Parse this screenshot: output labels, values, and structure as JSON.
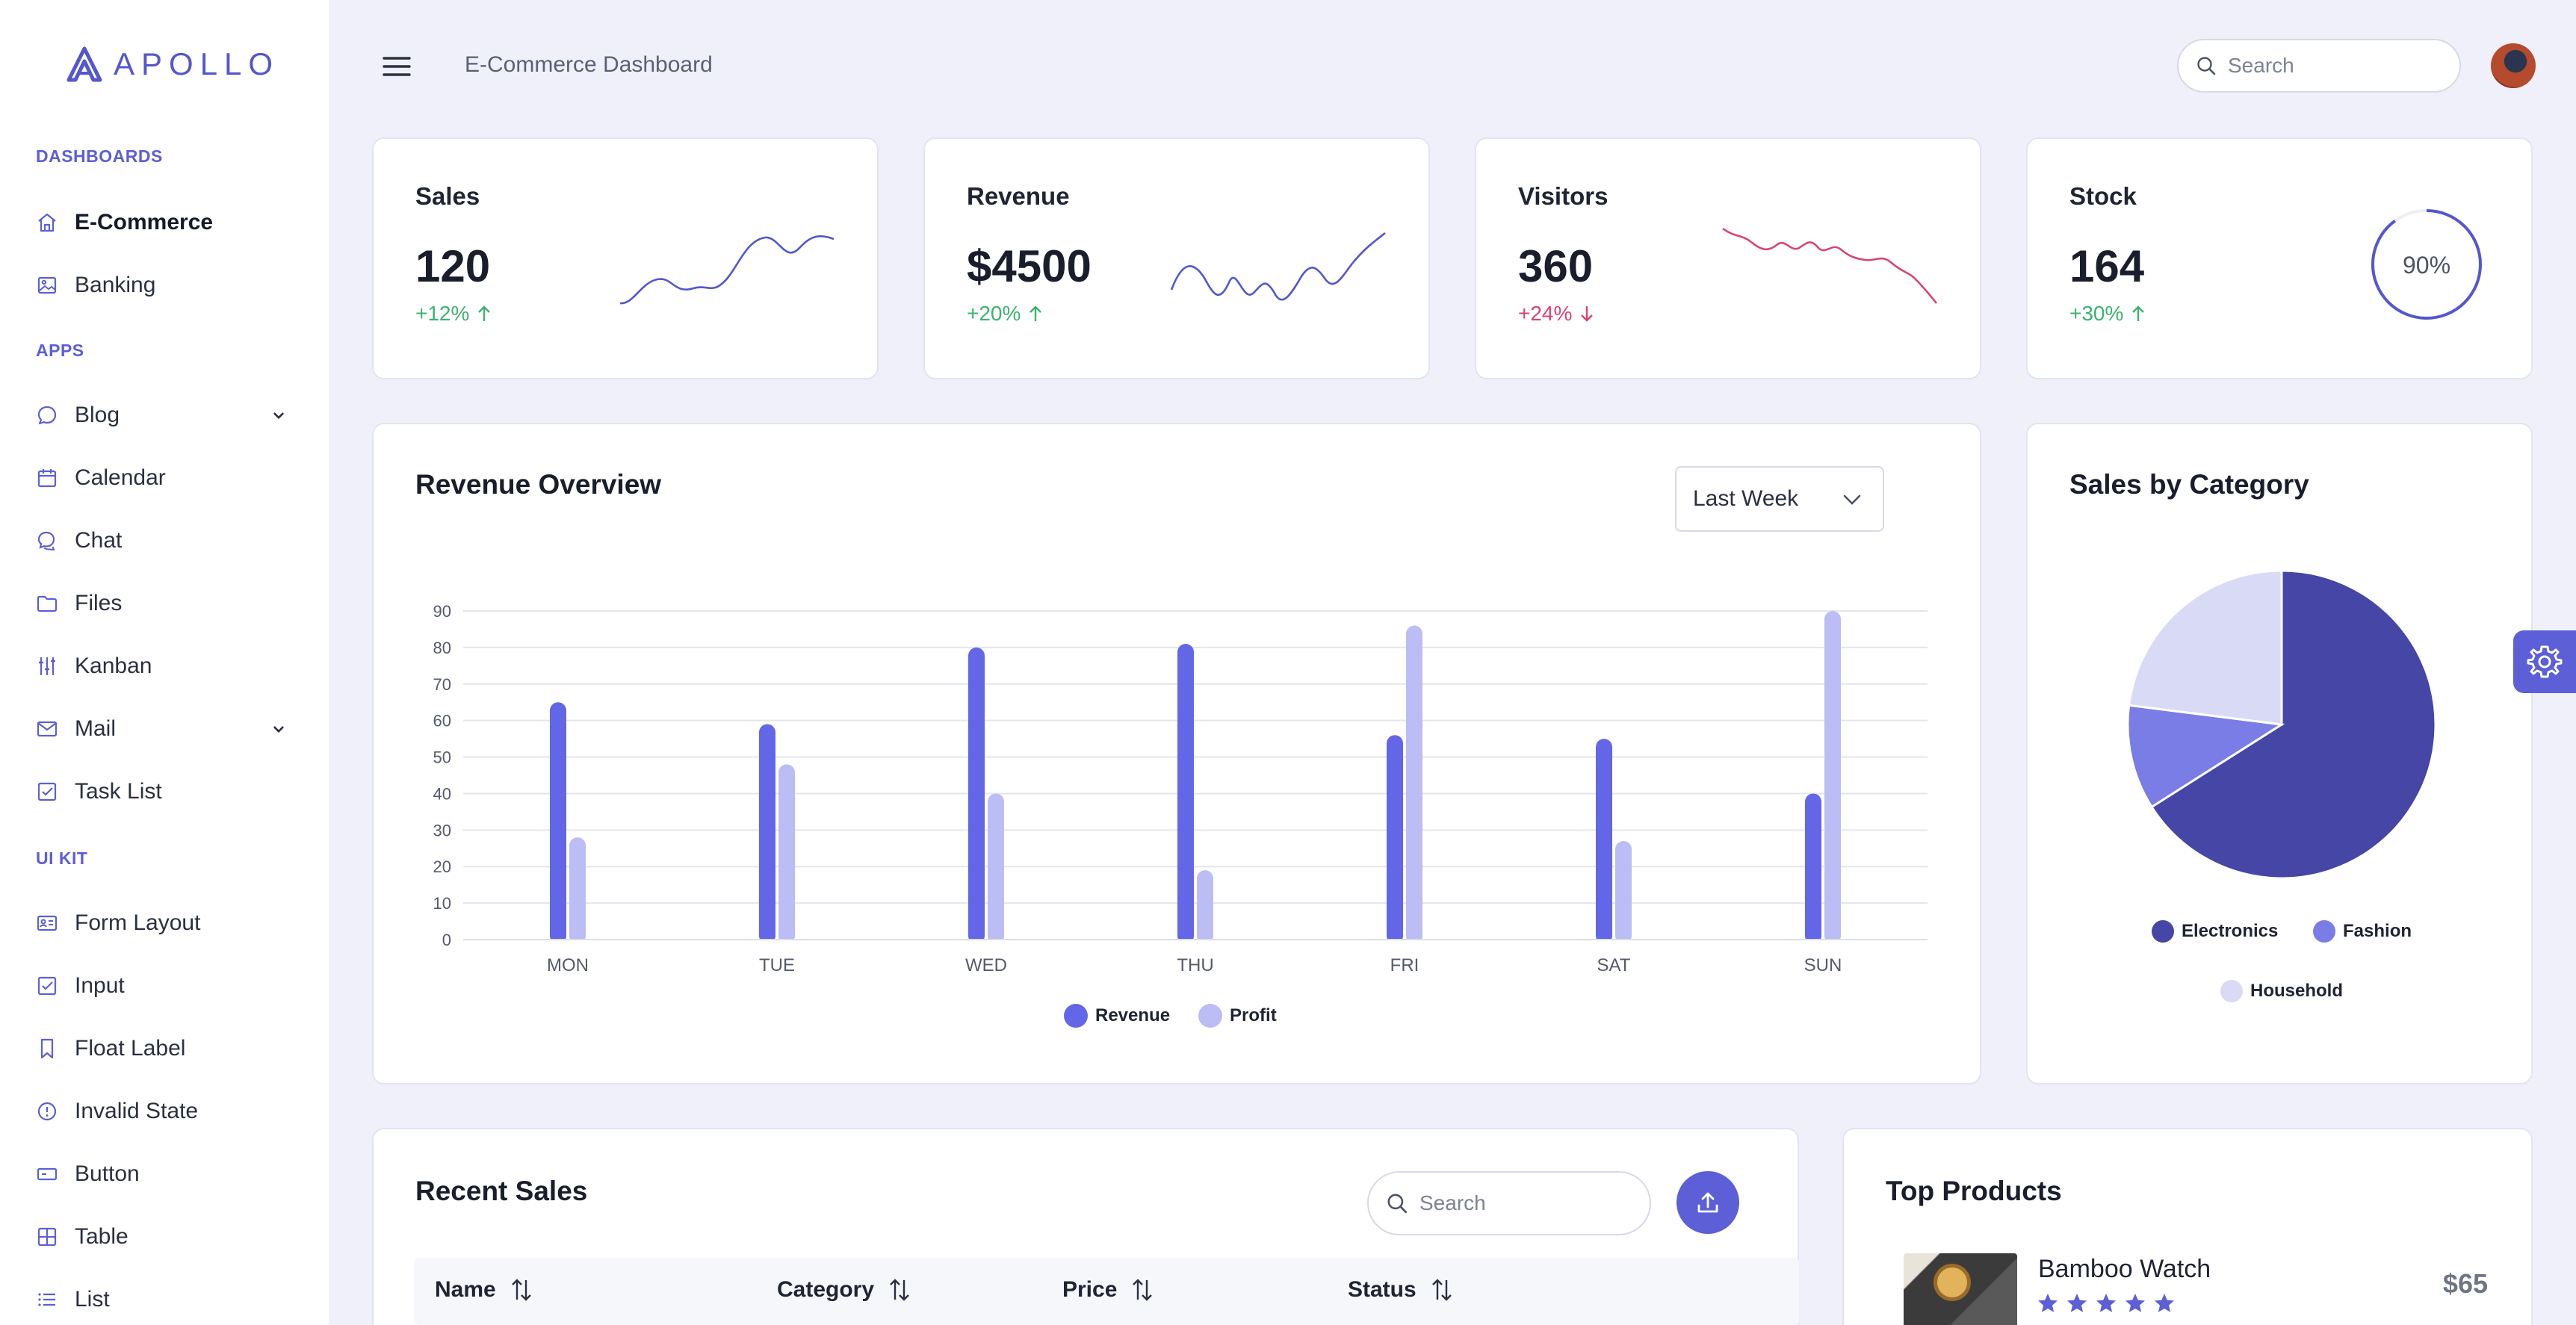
{
  "app": {
    "logo_text": "APOLLO"
  },
  "sidebar": {
    "sections": [
      {
        "label": "DASHBOARDS"
      },
      {
        "label": "APPS"
      },
      {
        "label": "UI KIT"
      }
    ],
    "items": [
      {
        "label": "E-Commerce",
        "icon": "home-icon"
      },
      {
        "label": "Banking",
        "icon": "image-icon"
      },
      {
        "label": "Blog",
        "icon": "comment-icon"
      },
      {
        "label": "Calendar",
        "icon": "calendar-icon"
      },
      {
        "label": "Chat",
        "icon": "chat-icon"
      },
      {
        "label": "Files",
        "icon": "folder-icon"
      },
      {
        "label": "Kanban",
        "icon": "sliders-icon"
      },
      {
        "label": "Mail",
        "icon": "envelope-icon"
      },
      {
        "label": "Task List",
        "icon": "check-square-icon"
      },
      {
        "label": "Form Layout",
        "icon": "id-card-icon"
      },
      {
        "label": "Input",
        "icon": "check-square-icon"
      },
      {
        "label": "Float Label",
        "icon": "bookmark-icon"
      },
      {
        "label": "Invalid State",
        "icon": "exclamation-circle-icon"
      },
      {
        "label": "Button",
        "icon": "button-icon"
      },
      {
        "label": "Table",
        "icon": "table-icon"
      },
      {
        "label": "List",
        "icon": "list-icon"
      }
    ]
  },
  "header": {
    "title": "E-Commerce Dashboard",
    "search_placeholder": "Search"
  },
  "stats": [
    {
      "title": "Sales",
      "value": "120",
      "change": "+12%",
      "trend": "up",
      "color": "#5457cd"
    },
    {
      "title": "Revenue",
      "value": "$4500",
      "change": "+20%",
      "trend": "up",
      "color": "#5457cd"
    },
    {
      "title": "Visitors",
      "value": "360",
      "change": "+24%",
      "trend": "down",
      "color": "#d94477"
    },
    {
      "title": "Stock",
      "value": "164",
      "change": "+30%",
      "trend": "up",
      "gauge_label": "90%",
      "gauge_fraction": 0.9
    }
  ],
  "revenue_overview": {
    "title": "Revenue Overview",
    "dropdown_value": "Last Week"
  },
  "chart_data": [
    {
      "type": "bar",
      "categories": [
        "MON",
        "TUE",
        "WED",
        "THU",
        "FRI",
        "SAT",
        "SUN"
      ],
      "series": [
        {
          "name": "Revenue",
          "values": [
            65,
            59,
            80,
            81,
            56,
            55,
            40
          ],
          "color": "#6466e8"
        },
        {
          "name": "Profit",
          "values": [
            28,
            48,
            40,
            19,
            86,
            27,
            90
          ],
          "color": "#bcbdf5"
        }
      ],
      "yticks": [
        0,
        10,
        20,
        30,
        40,
        50,
        60,
        70,
        80,
        90
      ],
      "ylim": [
        0,
        90
      ],
      "grid": true,
      "legend": "bottom"
    },
    {
      "type": "pie",
      "title": "Sales by Category",
      "series": [
        {
          "name": "Electronics",
          "value": 66,
          "color": "#4546a6"
        },
        {
          "name": "Fashion",
          "value": 11,
          "color": "#7b7de6"
        },
        {
          "name": "Household",
          "value": 23,
          "color": "#d9daf6"
        }
      ],
      "legend": "bottom"
    }
  ],
  "recent_sales": {
    "title": "Recent Sales",
    "search_placeholder": "Search",
    "columns": [
      "Name",
      "Category",
      "Price",
      "Status"
    ]
  },
  "top_products": {
    "title": "Top Products",
    "items": [
      {
        "name": "Bamboo Watch",
        "price": "$65",
        "rating": 5
      }
    ]
  }
}
